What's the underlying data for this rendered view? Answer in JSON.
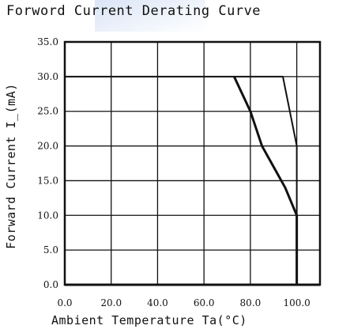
{
  "chart_data": {
    "type": "line",
    "title": "Forword Current Derating Curve",
    "xlabel": "Ambient Temperature Ta(°C)",
    "ylabel": "Forward Current I_(mA)",
    "xlim": [
      0,
      110
    ],
    "ylim": [
      0,
      35
    ],
    "x_ticks": [
      "0.0",
      "20.0",
      "40.0",
      "60.0",
      "80.0",
      "100.0"
    ],
    "y_ticks": [
      "0.0",
      "5.0",
      "10.0",
      "15.0",
      "20.0",
      "25.0",
      "30.0",
      "35.0"
    ],
    "grid": true,
    "series": [
      {
        "points": [
          [
            0,
            30
          ],
          [
            94,
            30
          ],
          [
            97,
            25
          ],
          [
            100,
            20
          ],
          [
            100,
            0
          ]
        ]
      },
      {
        "points": [
          [
            73,
            30
          ],
          [
            80,
            25
          ],
          [
            85,
            20
          ],
          [
            90,
            17
          ],
          [
            95,
            14
          ],
          [
            100,
            10
          ],
          [
            100,
            0
          ]
        ]
      }
    ]
  }
}
